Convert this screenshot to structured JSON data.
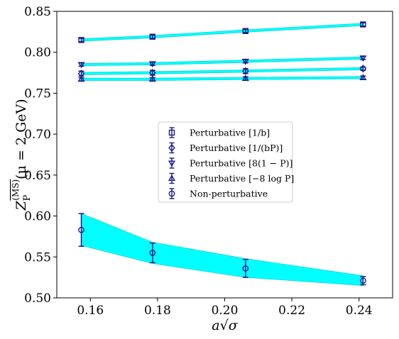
{
  "chart_data": {
    "type": "scatter",
    "xlabel": "a√σ",
    "ylabel": {
      "main": "Z",
      "sub": "P",
      "sup": "(MS)",
      "rest": "(μ = 2 GeV)"
    },
    "xlim": [
      0.15,
      0.25
    ],
    "ylim": [
      0.5,
      0.85
    ],
    "xticks": [
      0.16,
      0.18,
      0.2,
      0.22,
      0.24
    ],
    "xtick_labels": [
      "0.16",
      "0.18",
      "0.20",
      "0.22",
      "0.24"
    ],
    "yticks": [
      0.5,
      0.55,
      0.6,
      0.65,
      0.7,
      0.75,
      0.8,
      0.85
    ],
    "ytick_labels": [
      "0.50",
      "0.55",
      "0.60",
      "0.65",
      "0.70",
      "0.75",
      "0.80",
      "0.85"
    ],
    "grid": false,
    "legend_position": "center",
    "x": [
      0.1573,
      0.1785,
      0.2062,
      0.2412
    ],
    "series": [
      {
        "name": "Perturbative [1/b]",
        "marker": "square",
        "values": [
          0.815,
          0.819,
          0.826,
          0.834
        ],
        "errors": [
          0.002,
          0.002,
          0.002,
          0.002
        ],
        "band_lower": [
          0.8135,
          0.8175,
          0.8245,
          0.8325
        ],
        "band_upper": [
          0.8165,
          0.8205,
          0.8275,
          0.8355
        ]
      },
      {
        "name": "Perturbative [1/(bP)]",
        "marker": "diamond",
        "values": [
          0.774,
          0.775,
          0.777,
          0.78
        ],
        "errors": [
          0.003,
          0.003,
          0.003,
          0.002
        ],
        "band_lower": [
          0.7725,
          0.7735,
          0.7755,
          0.7785
        ],
        "band_upper": [
          0.7755,
          0.7765,
          0.7785,
          0.7815
        ]
      },
      {
        "name": "Perturbative [8(1 − P)]",
        "marker": "triangle-down",
        "values": [
          0.785,
          0.786,
          0.789,
          0.793
        ],
        "errors": [
          0.002,
          0.002,
          0.002,
          0.002
        ],
        "band_lower": [
          0.7835,
          0.7845,
          0.7875,
          0.7915
        ],
        "band_upper": [
          0.7865,
          0.7875,
          0.7905,
          0.7945
        ]
      },
      {
        "name": "Perturbative [−8 log P]",
        "marker": "triangle-up",
        "values": [
          0.767,
          0.767,
          0.768,
          0.769
        ],
        "errors": [
          0.002,
          0.002,
          0.002,
          0.002
        ],
        "band_lower": [
          0.7655,
          0.7655,
          0.7665,
          0.7675
        ],
        "band_upper": [
          0.7685,
          0.7685,
          0.7695,
          0.7705
        ]
      },
      {
        "name": "Non-perturbative",
        "marker": "circle",
        "values": [
          0.583,
          0.555,
          0.536,
          0.521
        ],
        "errors": [
          0.02,
          0.012,
          0.011,
          0.005
        ],
        "band_lower": [
          0.564,
          0.542,
          0.525,
          0.515
        ],
        "band_upper": [
          0.603,
          0.568,
          0.548,
          0.527
        ]
      }
    ],
    "colors": {
      "marker": "#1a1a8c",
      "band": "#00ffff",
      "band_edge": "#00cccc"
    }
  }
}
